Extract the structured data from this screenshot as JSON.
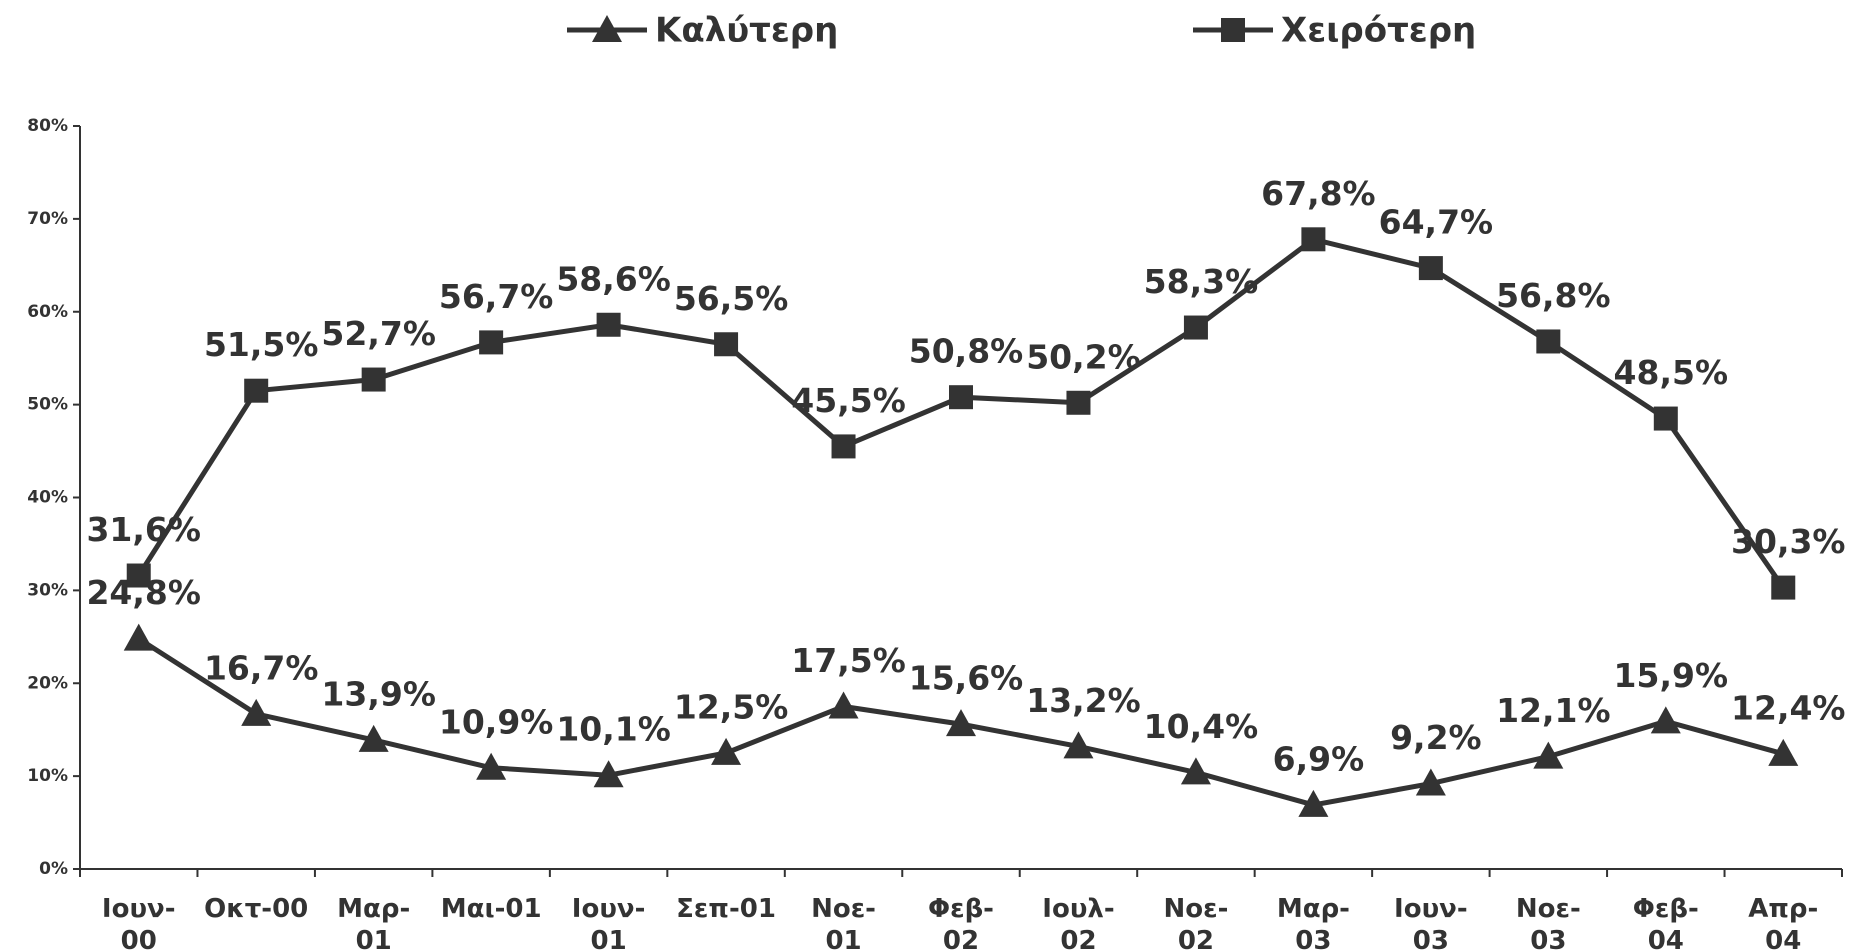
{
  "chart_data": {
    "type": "line",
    "categories": [
      "Ιουν-\n00",
      "Οκτ-00",
      "Μαρ-\n01",
      "Μαι-01",
      "Ιουν-\n01",
      "Σεπ-01",
      "Νοε-\n01",
      "Φεβ-\n02",
      "Ιουλ-\n02",
      "Νοε-\n02",
      "Μαρ-\n03",
      "Ιουν-\n03",
      "Νοε-\n03",
      "Φεβ-\n04",
      "Απρ-\n04"
    ],
    "series": [
      {
        "name": "Καλύτερη",
        "color": "#333333",
        "marker": "triangle",
        "values": [
          24.8,
          16.7,
          13.9,
          10.9,
          10.1,
          12.5,
          17.5,
          15.6,
          13.2,
          10.4,
          6.9,
          9.2,
          12.1,
          15.9,
          12.4
        ],
        "value_labels": [
          "24,8%",
          "16,7%",
          "13,9%",
          "10,9%",
          "10,1%",
          "12,5%",
          "17,5%",
          "15,6%",
          "13,2%",
          "10,4%",
          "6,9%",
          "9,2%",
          "12,1%",
          "15,9%",
          "12,4%"
        ]
      },
      {
        "name": "Χειρότερη",
        "color": "#333333",
        "marker": "square",
        "values": [
          31.6,
          51.5,
          52.7,
          56.7,
          58.6,
          56.5,
          45.5,
          50.8,
          50.2,
          58.3,
          67.8,
          64.7,
          56.8,
          48.5,
          30.3
        ],
        "value_labels": [
          "31,6%",
          "51,5%",
          "52,7%",
          "56,7%",
          "58,6%",
          "56,5%",
          "45,5%",
          "50,8%",
          "50,2%",
          "58,3%",
          "67,8%",
          "64,7%",
          "56,8%",
          "48,5%",
          "30,3%"
        ]
      }
    ],
    "ylim": [
      0,
      80
    ],
    "yticks": [
      {
        "value": 0,
        "label": "0%"
      },
      {
        "value": 10,
        "label": "10%"
      },
      {
        "value": 20,
        "label": "20%"
      },
      {
        "value": 30,
        "label": "30%"
      },
      {
        "value": 40,
        "label": "40%"
      },
      {
        "value": 50,
        "label": "50%"
      },
      {
        "value": 60,
        "label": "60%"
      },
      {
        "value": 70,
        "label": "70%"
      },
      {
        "value": 80,
        "label": "80%"
      }
    ],
    "legend": "top",
    "grid": false
  }
}
